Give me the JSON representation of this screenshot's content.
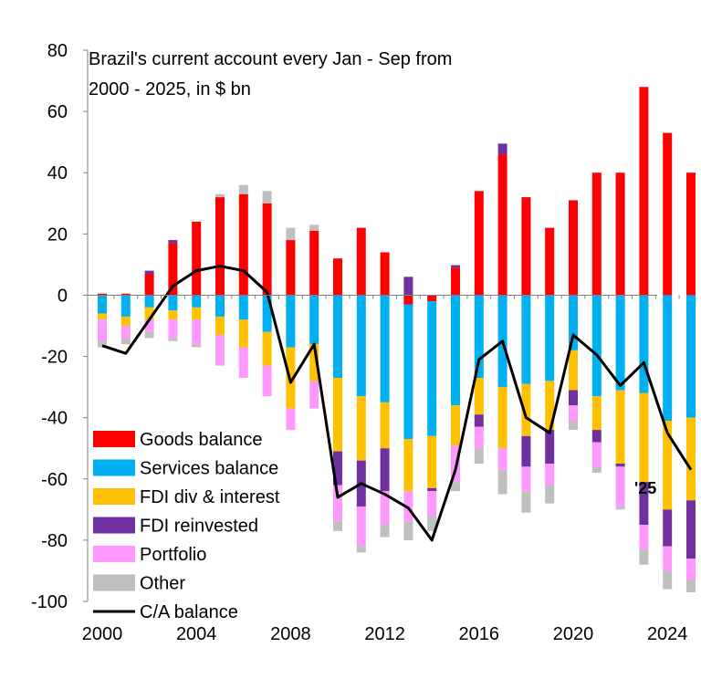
{
  "chart_data": {
    "type": "bar",
    "stacked": true,
    "title_lines": [
      "Brazil's current account every Jan - Sep from",
      "2000 - 2025, in $ bn"
    ],
    "x": [
      2000,
      2001,
      2002,
      2003,
      2004,
      2005,
      2006,
      2007,
      2008,
      2009,
      2010,
      2011,
      2012,
      2013,
      2014,
      2015,
      2016,
      2017,
      2018,
      2019,
      2020,
      2021,
      2022,
      2023,
      2024,
      2025
    ],
    "x_tick_labels": [
      "2000",
      "2004",
      "2008",
      "2012",
      "2016",
      "2020",
      "2024"
    ],
    "ylim": [
      -100,
      80
    ],
    "y_tick_labels": [
      "80",
      "60",
      "40",
      "20",
      "0",
      "-20",
      "-40",
      "-60",
      "-80",
      "-100"
    ],
    "grid": false,
    "legend_position": "bottom-left",
    "series": [
      {
        "name": "Goods balance",
        "color": "#ff0000",
        "values": [
          0.5,
          0.5,
          7,
          17,
          24,
          32,
          33,
          30,
          18,
          21,
          12,
          22,
          14,
          -3,
          -2,
          9,
          34,
          46,
          32,
          22,
          31,
          40,
          40,
          68,
          53,
          40
        ]
      },
      {
        "name": "Services balance",
        "color": "#00b0f0",
        "values": [
          -6,
          -7,
          -4,
          -5,
          -4,
          -7,
          -8,
          -12,
          -17,
          -16,
          -27,
          -33,
          -35,
          -44,
          -44,
          -36,
          -27,
          -30,
          -29,
          -28,
          -18,
          -33,
          -31,
          -32,
          -41,
          -40
        ]
      },
      {
        "name": "FDI div & interest",
        "color": "#ffc000",
        "values": [
          -2,
          -3,
          -4,
          -3,
          -4,
          -6,
          -9,
          -11,
          -20,
          -12,
          -24,
          -21,
          -15,
          -17,
          -17,
          -13,
          -12,
          -20,
          -17,
          -16,
          -13,
          -11,
          -24,
          -29,
          -29,
          -27
        ]
      },
      {
        "name": "FDI reinvested",
        "color": "#7030a0",
        "values": [
          0,
          0,
          1,
          1,
          0,
          0,
          0,
          0,
          0,
          0,
          -11,
          -15,
          -14,
          6,
          -1,
          0.8,
          -4,
          3.5,
          -10,
          -11,
          -5,
          -4,
          -1,
          -14,
          -12,
          -19
        ]
      },
      {
        "name": "Portfolio",
        "color": "#ff99ff",
        "values": [
          -7,
          -4,
          -4,
          -6,
          -8,
          -10,
          -10,
          -10,
          -7,
          -9,
          -12,
          -13,
          -11,
          -10,
          -8,
          -12,
          -7,
          -7,
          -8,
          -7,
          -5,
          -8,
          -13,
          -8,
          -8,
          -7
        ]
      },
      {
        "name": "Other",
        "color": "#bfbfbf",
        "values": [
          -2,
          -2,
          -2,
          -1,
          -1,
          1,
          3,
          4,
          4,
          2,
          -3,
          -2,
          -4,
          -6,
          -5,
          -3,
          -5,
          -8,
          -7,
          -6,
          -3,
          -2,
          -1,
          -5,
          -6,
          -4
        ]
      }
    ],
    "line_series": {
      "name": "C/A balance",
      "color": "#000000",
      "values": [
        -16.5,
        -19,
        -8,
        3,
        8,
        9.5,
        8,
        1,
        -28.5,
        -16,
        -66,
        -61.5,
        -65,
        -69.5,
        -80,
        -57,
        -21,
        -15,
        -40,
        -45,
        -13,
        -19.5,
        -29.5,
        -22,
        -45,
        -57
      ]
    },
    "end_label": "'25"
  }
}
